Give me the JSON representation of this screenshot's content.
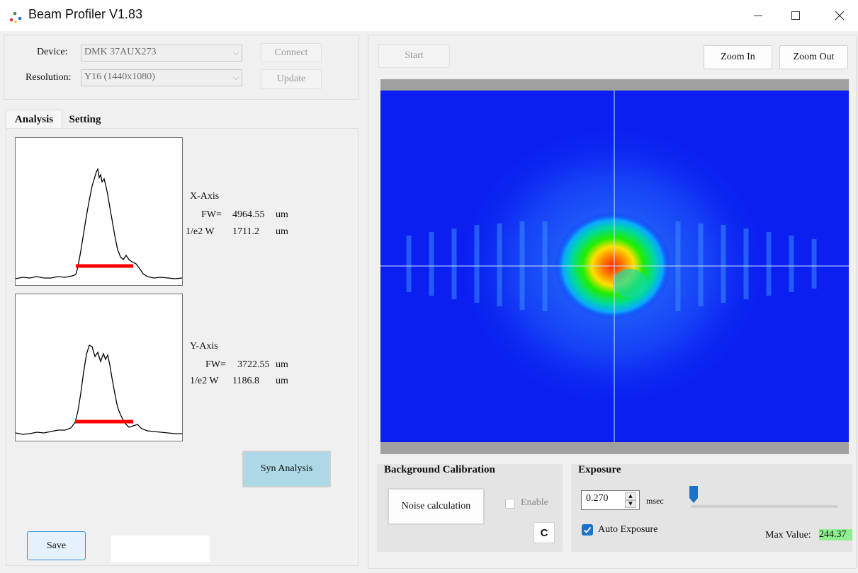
{
  "window": {
    "title": "Beam Profiler V1.83",
    "controls": {
      "minimize": "—",
      "maximize": "☐",
      "close": "✕"
    }
  },
  "device": {
    "device_label": "Device:",
    "device_value": "DMK 37AUX273",
    "resolution_label": "Resolution:",
    "resolution_value": "Y16 (1440x1080)",
    "connect_label": "Connect",
    "update_label": "Update"
  },
  "tabs": [
    {
      "label": "Analysis",
      "active": true
    },
    {
      "label": "Setting",
      "active": false
    }
  ],
  "x_axis": {
    "title": "X-Axis",
    "fw_label": "FW=",
    "fw_value": "4964.55",
    "fw_unit": "um",
    "e2_label": "1/e2 W",
    "e2_value": "1711.2",
    "e2_unit": "um"
  },
  "y_axis": {
    "title": "Y-Axis",
    "fw_label": "FW=",
    "fw_value": "3722.55",
    "fw_unit": "um",
    "e2_label": "1/e2 W",
    "e2_value": "1186.8",
    "e2_unit": "um"
  },
  "syn_analysis_label": "Syn Analysis",
  "save_label": "Save",
  "save_name_value": "",
  "top_buttons": {
    "start_label": "Start",
    "zoom_in_label": "Zoom In",
    "zoom_out_label": "Zoom Out"
  },
  "background_calibration": {
    "title": "Background Calibration",
    "noise_label": "Noise calculation",
    "enable_label": "Enable",
    "enable_checked": false,
    "c_label": "C"
  },
  "exposure": {
    "title": "Exposure",
    "value": "0.270",
    "unit": "msec",
    "auto_label": "Auto Exposure",
    "auto_checked": true,
    "slider_level": 0.02,
    "max_label": "Max Value:",
    "max_value": "244.37"
  },
  "colors": {
    "beam_background": "#0a1ff0",
    "accent_button": "#add8e6",
    "fw_bar": "#ff0000",
    "max_value_highlight": "#90ee90",
    "checkbox_checked": "#1a73c9"
  }
}
